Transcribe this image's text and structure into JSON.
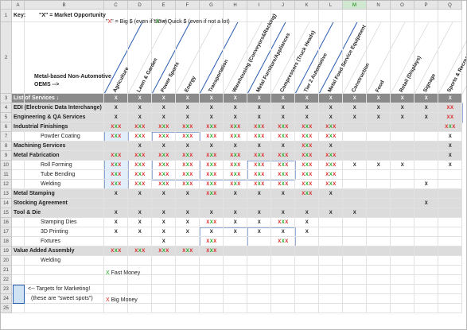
{
  "key": {
    "label": "Key:",
    "market": "\"X\" = Market Opportunity",
    "big": "\"X\" = Big $ (even if slow)",
    "quick": "\"X\" = Quick $ (even if not a lot)"
  },
  "oems_label": "Metal-based Non-Automotive OEMS -->",
  "column_letters": [
    "A",
    "B",
    "C",
    "D",
    "E",
    "F",
    "G",
    "H",
    "I",
    "J",
    "K",
    "L",
    "M",
    "N",
    "O",
    "P",
    "Q"
  ],
  "row_numbers": [
    1,
    2,
    3,
    4,
    5,
    6,
    7,
    8,
    9,
    10,
    11,
    12,
    13,
    14,
    15,
    16,
    17,
    18,
    19,
    20,
    21,
    22,
    23,
    24,
    25
  ],
  "industries": [
    "Agriculture",
    "Lawn & Garden",
    "Power Sports",
    "Energy",
    "Transportation",
    "Warehousing (Conveyors&Racking)",
    "Metal Furniture/Appliances",
    "Compressors (Truck Heads)",
    "Tier 2 Automotive",
    "Metal Food Service Equipment",
    "Construction",
    "Food",
    "Retail (Displays)",
    "Signage",
    "Sports & Recreation"
  ],
  "rows": [
    {
      "label": "List of Services ↓",
      "cells": [
        "X",
        "X",
        "X",
        "X",
        "X",
        "X",
        "X",
        "X",
        "X",
        "X",
        "X",
        "X",
        "X",
        "X",
        "X"
      ]
    },
    {
      "label": "EDI (Electronic Data Interchange)",
      "cells": [
        "X",
        "X",
        "X",
        "X",
        "X",
        "X",
        "X",
        "X",
        "X",
        "X",
        "X",
        "X",
        "X",
        "X",
        "XX"
      ]
    },
    {
      "label": "Engineering & QA Services",
      "cells": [
        "X",
        "X",
        "X",
        "X",
        "X",
        "X",
        "X",
        "X",
        "X",
        "X",
        "X",
        "X",
        "X",
        "X",
        "XX"
      ]
    },
    {
      "label": "Industrial Finishings",
      "cells": [
        "XXX",
        "XXX",
        "XXX",
        "XXX",
        "XXX",
        "XXX",
        "XXX",
        "XXX",
        "XXX",
        "XXX",
        null,
        null,
        null,
        null,
        "XXX"
      ]
    },
    {
      "label": "Powder Coating",
      "cells": [
        "XXX",
        "XXX",
        "XXX",
        "XXX",
        "XXX",
        "XXX",
        "XXX",
        "XXX",
        "XXX",
        "XXX",
        null,
        null,
        null,
        null,
        "X"
      ]
    },
    {
      "label": "Machining Services",
      "cells": [
        null,
        "X",
        "X",
        "X",
        "X",
        "X",
        "X",
        "X",
        "XXX",
        "X",
        null,
        null,
        null,
        null,
        "X"
      ]
    },
    {
      "label": "Metal Fabrication",
      "cells": [
        "XXX",
        "XXX",
        "XXX",
        "XXX",
        "XXX",
        "XXX",
        "XXX",
        "XXX",
        "XXX",
        "XXX",
        null,
        null,
        null,
        null,
        "X"
      ]
    },
    {
      "label": "Roll Forming",
      "cells": [
        "XXX",
        "XXX",
        "XXX",
        "XXX",
        "XXX",
        "XXX",
        "XXX",
        "XXX",
        "XXX",
        "XXX",
        "X",
        "X",
        "X",
        null,
        "X"
      ]
    },
    {
      "label": "Tube Bending",
      "cells": [
        "XXX",
        "XXX",
        "XXX",
        "XXX",
        "XXX",
        "XXX",
        "XXX",
        "XXX",
        "XXX",
        "XXX",
        null,
        null,
        null,
        null,
        null
      ]
    },
    {
      "label": "Welding",
      "cells": [
        "XXX",
        "XXX",
        "XXX",
        "XXX",
        "XXX",
        "XXX",
        "XXX",
        "XXX",
        "XXX",
        "XXX",
        null,
        null,
        null,
        "X",
        null
      ]
    },
    {
      "label": "Metal Stamping",
      "cells": [
        "X",
        "X",
        "X",
        "X",
        "XXX",
        "X",
        "X",
        "X",
        "XXX",
        "X",
        null,
        null,
        null,
        null,
        null
      ]
    },
    {
      "label": "Stocking Agreement",
      "cells": [
        null,
        null,
        null,
        null,
        null,
        null,
        null,
        null,
        null,
        null,
        null,
        null,
        null,
        "X",
        null
      ]
    },
    {
      "label": "Tool & Die",
      "cells": [
        "X",
        "X",
        "X",
        "X",
        "X",
        "X",
        "X",
        "X",
        "X",
        "X",
        "X",
        null,
        null,
        null,
        null
      ]
    },
    {
      "label": "Stamping Dies",
      "cells": [
        "X",
        "X",
        "X",
        "X",
        "XXX",
        "X",
        "X",
        "XXX",
        "X",
        null,
        null,
        null,
        null,
        null,
        null
      ]
    },
    {
      "label": "3D Printing",
      "cells": [
        "X",
        "X",
        "X",
        "X",
        "X",
        "X",
        "X",
        "X",
        "X",
        null,
        null,
        null,
        null,
        null,
        null
      ]
    },
    {
      "label": "Fixtures",
      "cells": [
        null,
        null,
        "X",
        null,
        "XXX",
        null,
        null,
        "XXX",
        null,
        null,
        null,
        null,
        null,
        null,
        null
      ]
    },
    {
      "label": "Value Added Assembly",
      "cells": [
        "XXX",
        "XXX",
        "XXX",
        "XXX",
        "XXX",
        null,
        null,
        null,
        null,
        null,
        null,
        null,
        null,
        null,
        null
      ]
    },
    {
      "label": "Welding",
      "cells": [
        null,
        null,
        null,
        null,
        null,
        null,
        null,
        null,
        null,
        null,
        null,
        null,
        null,
        null,
        null
      ]
    }
  ],
  "row_styles": [
    "dark",
    "band",
    "band",
    "band",
    "sub",
    "band",
    "band",
    "sub",
    "sub",
    "sub",
    "band",
    "band",
    "band",
    "sub",
    "sub",
    "sub",
    "band",
    "sub"
  ],
  "targets": {
    "line1": "<-- Targets for Marketing!",
    "line2": "(these are     \"sweet spots\")"
  },
  "legend": {
    "fast": "X Fast Money",
    "big": "X Big Money"
  }
}
